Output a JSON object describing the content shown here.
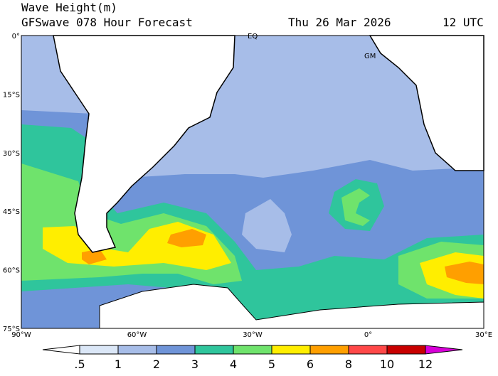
{
  "header": {
    "title": "Wave Height(m)",
    "subtitle": "GFSwave 078 Hour Forecast",
    "date": "Thu 26 Mar 2026",
    "time": "12 UTC"
  },
  "map": {
    "lat_labels": [
      "0°",
      "15°S",
      "30°S",
      "45°S",
      "60°S",
      "75°S"
    ],
    "lon_labels": [
      "90°W",
      "60°W",
      "30°W",
      "0°",
      "30°E"
    ],
    "markers": [
      "EQ",
      "GM"
    ]
  },
  "colorbar": {
    "labels": [
      ".5",
      "1",
      "2",
      "3",
      "4",
      "5",
      "6",
      "8",
      "10",
      "12"
    ],
    "colors": [
      "#ffffff",
      "#dbe7f7",
      "#a7bde8",
      "#6f94d8",
      "#2fc59c",
      "#6fe36c",
      "#ffee00",
      "#ff9f00",
      "#ff4848",
      "#c80000",
      "#d800d8"
    ]
  }
}
